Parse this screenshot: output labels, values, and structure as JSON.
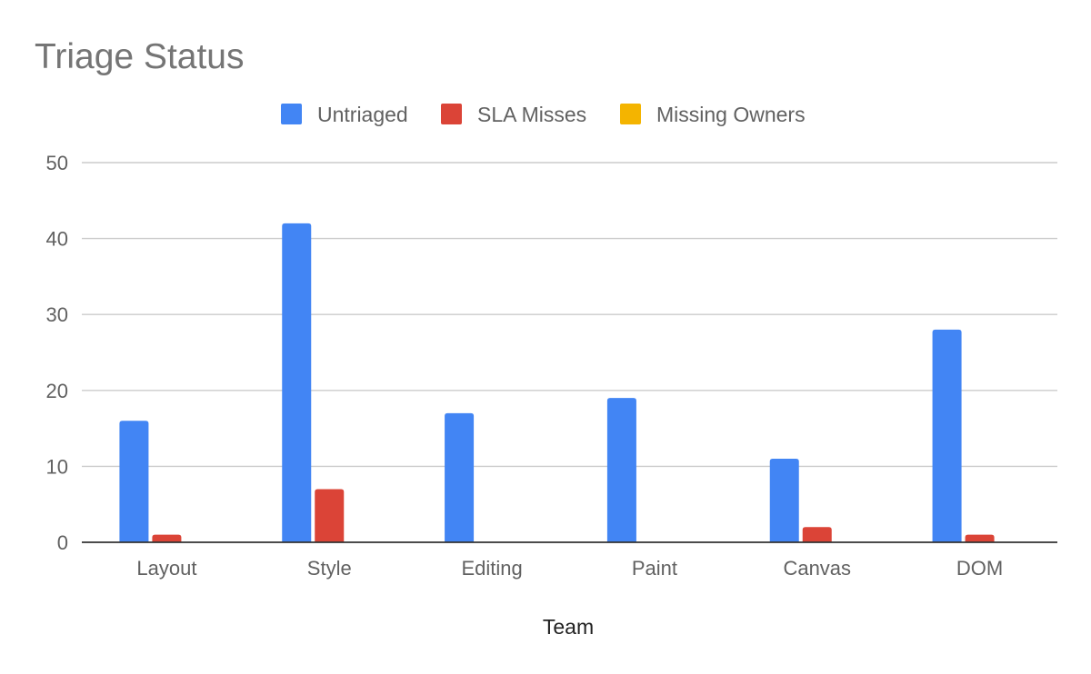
{
  "chart_data": {
    "type": "bar",
    "title": "Triage Status",
    "xlabel": "Team",
    "ylabel": "",
    "categories": [
      "Layout",
      "Style",
      "Editing",
      "Paint",
      "Canvas",
      "DOM"
    ],
    "series": [
      {
        "name": "Untriaged",
        "color": "#4285f4",
        "values": [
          16,
          42,
          17,
          19,
          11,
          28
        ]
      },
      {
        "name": "SLA Misses",
        "color": "#db4437",
        "values": [
          1,
          7,
          0,
          0,
          2,
          1
        ]
      },
      {
        "name": "Missing Owners",
        "color": "#f4b400",
        "values": [
          0,
          0,
          0,
          0,
          0,
          0
        ]
      }
    ],
    "ylim": [
      0,
      50
    ],
    "yticks": [
      "0",
      "10",
      "20",
      "30",
      "40",
      "50"
    ],
    "grid": true,
    "legend_position": "top-center"
  }
}
